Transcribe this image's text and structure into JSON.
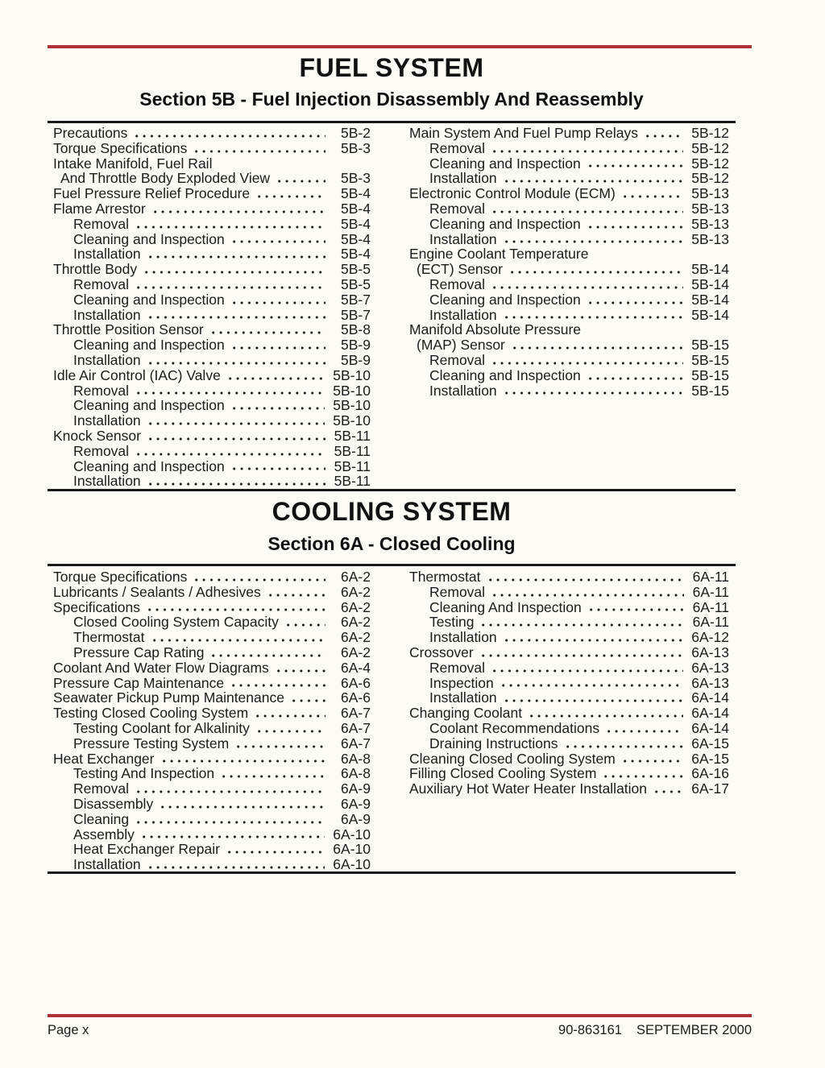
{
  "colors": {
    "accent_red": "#ad3136",
    "rule_black": "#191919",
    "paper": "#fcfbf6"
  },
  "footer": {
    "page_label": "Page x",
    "doc_number": "90-863161",
    "date": "SEPTEMBER 2000"
  },
  "sections": [
    {
      "title": "FUEL SYSTEM",
      "subtitle": "Section 5B - Fuel Injection Disassembly And Reassembly",
      "columns": [
        [
          {
            "text": "Precautions",
            "page": "5B-2",
            "indent": 0
          },
          {
            "text": "Torque Specifications",
            "page": "5B-3",
            "indent": 0
          },
          {
            "text": "Intake Manifold, Fuel Rail",
            "page": null,
            "indent": 0
          },
          {
            "text": "And Throttle Body Exploded View",
            "page": "5B-3",
            "indent": 1
          },
          {
            "text": "Fuel Pressure Relief Procedure",
            "page": "5B-4",
            "indent": 0
          },
          {
            "text": "Flame Arrestor",
            "page": "5B-4",
            "indent": 0
          },
          {
            "text": "Removal",
            "page": "5B-4",
            "indent": 2
          },
          {
            "text": "Cleaning and Inspection",
            "page": "5B-4",
            "indent": 2
          },
          {
            "text": "Installation",
            "page": "5B-4",
            "indent": 2
          },
          {
            "text": "Throttle Body",
            "page": "5B-5",
            "indent": 0
          },
          {
            "text": "Removal",
            "page": "5B-5",
            "indent": 2
          },
          {
            "text": "Cleaning and Inspection",
            "page": "5B-7",
            "indent": 2
          },
          {
            "text": "Installation",
            "page": "5B-7",
            "indent": 2
          },
          {
            "text": "Throttle Position Sensor",
            "page": "5B-8",
            "indent": 0
          },
          {
            "text": "Cleaning and Inspection",
            "page": "5B-9",
            "indent": 2
          },
          {
            "text": "Installation",
            "page": "5B-9",
            "indent": 2
          },
          {
            "text": "Idle Air Control (IAC) Valve",
            "page": "5B-10",
            "indent": 0
          },
          {
            "text": "Removal",
            "page": "5B-10",
            "indent": 2
          },
          {
            "text": "Cleaning and Inspection",
            "page": "5B-10",
            "indent": 2
          },
          {
            "text": "Installation",
            "page": "5B-10",
            "indent": 2
          },
          {
            "text": "Knock Sensor",
            "page": "5B-11",
            "indent": 0
          },
          {
            "text": "Removal",
            "page": "5B-11",
            "indent": 2
          },
          {
            "text": "Cleaning and Inspection",
            "page": "5B-11",
            "indent": 2
          },
          {
            "text": "Installation",
            "page": "5B-11",
            "indent": 2
          }
        ],
        [
          {
            "text": "Main System And Fuel Pump Relays",
            "page": "5B-12",
            "indent": 0
          },
          {
            "text": "Removal",
            "page": "5B-12",
            "indent": 2
          },
          {
            "text": "Cleaning and Inspection",
            "page": "5B-12",
            "indent": 2
          },
          {
            "text": "Installation",
            "page": "5B-12",
            "indent": 2
          },
          {
            "text": "Electronic Control Module (ECM)",
            "page": "5B-13",
            "indent": 0
          },
          {
            "text": "Removal",
            "page": "5B-13",
            "indent": 2
          },
          {
            "text": "Cleaning and Inspection",
            "page": "5B-13",
            "indent": 2
          },
          {
            "text": "Installation",
            "page": "5B-13",
            "indent": 2
          },
          {
            "text": "Engine Coolant Temperature",
            "page": null,
            "indent": 0
          },
          {
            "text": "(ECT) Sensor",
            "page": "5B-14",
            "indent": 1
          },
          {
            "text": "Removal",
            "page": "5B-14",
            "indent": 2
          },
          {
            "text": "Cleaning and Inspection",
            "page": "5B-14",
            "indent": 2
          },
          {
            "text": "Installation",
            "page": "5B-14",
            "indent": 2
          },
          {
            "text": "Manifold Absolute Pressure",
            "page": null,
            "indent": 0
          },
          {
            "text": "(MAP) Sensor",
            "page": "5B-15",
            "indent": 1
          },
          {
            "text": "Removal",
            "page": "5B-15",
            "indent": 2
          },
          {
            "text": "Cleaning and Inspection",
            "page": "5B-15",
            "indent": 2
          },
          {
            "text": "Installation",
            "page": "5B-15",
            "indent": 2
          }
        ]
      ]
    },
    {
      "title": "COOLING SYSTEM",
      "subtitle": "Section 6A - Closed Cooling",
      "columns": [
        [
          {
            "text": "Torque Specifications",
            "page": "6A-2",
            "indent": 0
          },
          {
            "text": "Lubricants / Sealants / Adhesives",
            "page": "6A-2",
            "indent": 0
          },
          {
            "text": "Specifications",
            "page": "6A-2",
            "indent": 0
          },
          {
            "text": "Closed Cooling System Capacity",
            "page": "6A-2",
            "indent": 2
          },
          {
            "text": "Thermostat",
            "page": "6A-2",
            "indent": 2
          },
          {
            "text": "Pressure Cap Rating",
            "page": "6A-2",
            "indent": 2
          },
          {
            "text": "Coolant And Water Flow Diagrams",
            "page": "6A-4",
            "indent": 0
          },
          {
            "text": "Pressure Cap Maintenance",
            "page": "6A-6",
            "indent": 0
          },
          {
            "text": "Seawater Pickup Pump Maintenance",
            "page": "6A-6",
            "indent": 0
          },
          {
            "text": "Testing Closed Cooling System",
            "page": "6A-7",
            "indent": 0
          },
          {
            "text": "Testing Coolant for Alkalinity",
            "page": "6A-7",
            "indent": 2
          },
          {
            "text": "Pressure Testing System",
            "page": "6A-7",
            "indent": 2
          },
          {
            "text": "Heat Exchanger",
            "page": "6A-8",
            "indent": 0
          },
          {
            "text": "Testing And Inspection",
            "page": "6A-8",
            "indent": 2
          },
          {
            "text": "Removal",
            "page": "6A-9",
            "indent": 2
          },
          {
            "text": "Disassembly",
            "page": "6A-9",
            "indent": 2
          },
          {
            "text": "Cleaning",
            "page": "6A-9",
            "indent": 2
          },
          {
            "text": "Assembly",
            "page": "6A-10",
            "indent": 2
          },
          {
            "text": "Heat Exchanger Repair",
            "page": "6A-10",
            "indent": 2
          },
          {
            "text": "Installation",
            "page": "6A-10",
            "indent": 2
          }
        ],
        [
          {
            "text": "Thermostat",
            "page": "6A-11",
            "indent": 0
          },
          {
            "text": "Removal",
            "page": "6A-11",
            "indent": 2
          },
          {
            "text": "Cleaning And Inspection",
            "page": "6A-11",
            "indent": 2
          },
          {
            "text": "Testing",
            "page": "6A-11",
            "indent": 2
          },
          {
            "text": "Installation",
            "page": "6A-12",
            "indent": 2
          },
          {
            "text": "Crossover",
            "page": "6A-13",
            "indent": 0
          },
          {
            "text": "Removal",
            "page": "6A-13",
            "indent": 2
          },
          {
            "text": "Inspection",
            "page": "6A-13",
            "indent": 2
          },
          {
            "text": "Installation",
            "page": "6A-14",
            "indent": 2
          },
          {
            "text": "Changing Coolant",
            "page": "6A-14",
            "indent": 0
          },
          {
            "text": "Coolant Recommendations",
            "page": "6A-14",
            "indent": 2
          },
          {
            "text": "Draining Instructions",
            "page": "6A-15",
            "indent": 2
          },
          {
            "text": "Cleaning Closed Cooling System",
            "page": "6A-15",
            "indent": 0
          },
          {
            "text": "Filling Closed Cooling System",
            "page": "6A-16",
            "indent": 0
          },
          {
            "text": "Auxiliary Hot Water Heater Installation",
            "page": "6A-17",
            "indent": 0
          }
        ]
      ]
    }
  ]
}
